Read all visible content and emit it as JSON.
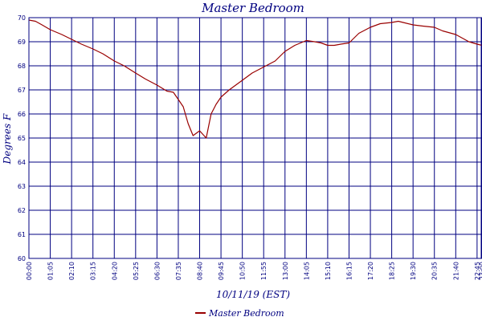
{
  "chart_data": {
    "type": "line",
    "title": "Master Bedroom",
    "xlabel": "10/11/19 (EST)",
    "ylabel": "Degrees F",
    "ylim": [
      60,
      70
    ],
    "yticks": [
      "60",
      "61",
      "62",
      "63",
      "64",
      "65",
      "66",
      "67",
      "68",
      "69",
      "70"
    ],
    "xlim": [
      "00:00",
      "23:00"
    ],
    "xticks": [
      "00:00",
      "01:05",
      "02:10",
      "03:15",
      "04:20",
      "05:25",
      "06:30",
      "07:35",
      "08:40",
      "09:45",
      "10:50",
      "11:55",
      "13:00",
      "14:05",
      "15:10",
      "16:15",
      "17:20",
      "18:25",
      "19:30",
      "20:35",
      "21:40",
      "22:45",
      "23:00"
    ],
    "grid": true,
    "legend_position": "bottom",
    "colors": {
      "series": "#990000",
      "text": "#000080",
      "grid": "#000080"
    },
    "series": [
      {
        "name": "Master Bedroom",
        "x": [
          "00:00",
          "00:20",
          "00:40",
          "01:05",
          "01:40",
          "02:10",
          "02:40",
          "03:15",
          "03:45",
          "04:20",
          "04:50",
          "05:25",
          "05:55",
          "06:30",
          "07:00",
          "07:20",
          "07:35",
          "07:50",
          "08:05",
          "08:20",
          "08:40",
          "09:00",
          "09:15",
          "09:30",
          "09:45",
          "10:10",
          "10:50",
          "11:20",
          "11:55",
          "12:30",
          "13:00",
          "13:30",
          "14:05",
          "14:30",
          "14:50",
          "15:10",
          "15:30",
          "15:50",
          "16:15",
          "16:45",
          "17:20",
          "17:50",
          "18:25",
          "18:45",
          "19:00",
          "19:30",
          "20:00",
          "20:35",
          "21:00",
          "21:40",
          "22:00",
          "22:20",
          "22:45",
          "23:00"
        ],
        "y": [
          69.9,
          69.85,
          69.7,
          69.5,
          69.3,
          69.1,
          68.9,
          68.7,
          68.5,
          68.2,
          68.0,
          67.7,
          67.45,
          67.2,
          66.95,
          66.9,
          66.6,
          66.3,
          65.6,
          65.1,
          65.3,
          65.0,
          66.0,
          66.4,
          66.7,
          67.0,
          67.4,
          67.7,
          67.95,
          68.2,
          68.6,
          68.85,
          69.05,
          69.0,
          68.95,
          68.85,
          68.85,
          68.9,
          68.95,
          69.35,
          69.6,
          69.75,
          69.8,
          69.85,
          69.8,
          69.7,
          69.65,
          69.6,
          69.45,
          69.3,
          69.15,
          69.0,
          68.9,
          68.85
        ]
      }
    ]
  }
}
